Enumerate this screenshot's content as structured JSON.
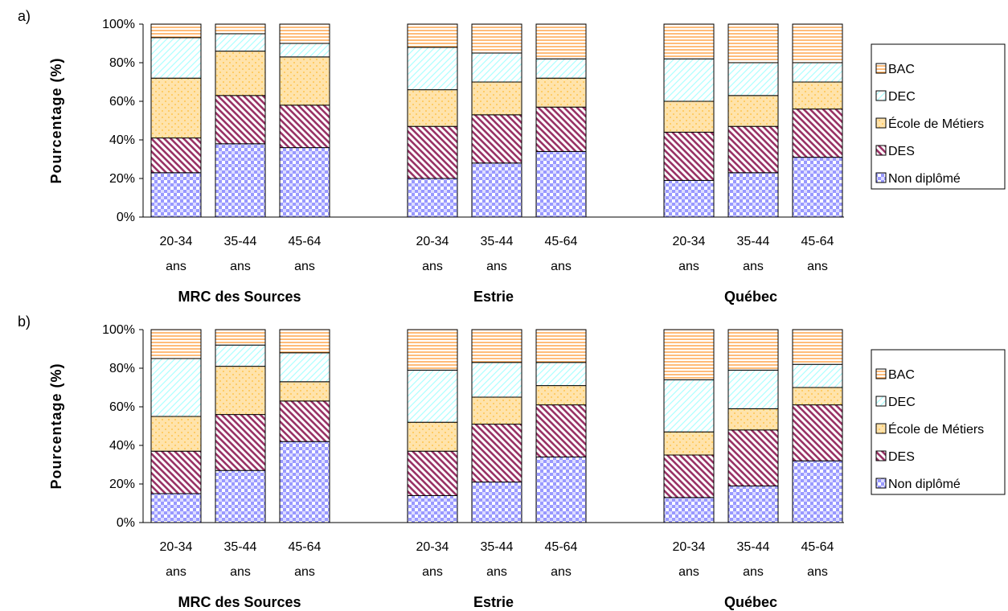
{
  "chart_data": [
    {
      "type": "bar",
      "stacked": true,
      "panel_label": "a)",
      "ylabel": "Pourcentage (%)",
      "ylim": [
        0,
        100
      ],
      "yticks": [
        "0%",
        "20%",
        "40%",
        "60%",
        "80%",
        "100%"
      ],
      "grid": false,
      "legend_position": "right",
      "groups": [
        {
          "name": "MRC des Sources",
          "categories": [
            [
              "20-34",
              "ans"
            ],
            [
              "35-44",
              "ans"
            ],
            [
              "45-64",
              "ans"
            ]
          ]
        },
        {
          "name": "Estrie",
          "categories": [
            [
              "20-34",
              "ans"
            ],
            [
              "35-44",
              "ans"
            ],
            [
              "45-64",
              "ans"
            ]
          ]
        },
        {
          "name": "Québec",
          "categories": [
            [
              "20-34",
              "ans"
            ],
            [
              "35-44",
              "ans"
            ],
            [
              "45-64",
              "ans"
            ]
          ]
        }
      ],
      "series": [
        {
          "name": "Non diplômé",
          "values": [
            23,
            38,
            36,
            20,
            28,
            34,
            19,
            23,
            31
          ]
        },
        {
          "name": "DES",
          "values": [
            18,
            25,
            22,
            27,
            25,
            23,
            25,
            24,
            25
          ]
        },
        {
          "name": "École de Métiers",
          "values": [
            31,
            23,
            25,
            19,
            17,
            15,
            16,
            16,
            14
          ]
        },
        {
          "name": "DEC",
          "values": [
            21,
            9,
            7,
            22,
            15,
            10,
            22,
            17,
            10
          ]
        },
        {
          "name": "BAC",
          "values": [
            7,
            5,
            10,
            12,
            15,
            18,
            18,
            20,
            20
          ]
        }
      ]
    },
    {
      "type": "bar",
      "stacked": true,
      "panel_label": "b)",
      "ylabel": "Pourcentage (%)",
      "ylim": [
        0,
        100
      ],
      "yticks": [
        "0%",
        "20%",
        "40%",
        "60%",
        "80%",
        "100%"
      ],
      "grid": false,
      "legend_position": "right",
      "groups": [
        {
          "name": "MRC des Sources",
          "categories": [
            [
              "20-34",
              "ans"
            ],
            [
              "35-44",
              "ans"
            ],
            [
              "45-64",
              "ans"
            ]
          ]
        },
        {
          "name": "Estrie",
          "categories": [
            [
              "20-34",
              "ans"
            ],
            [
              "35-44",
              "ans"
            ],
            [
              "45-64",
              "ans"
            ]
          ]
        },
        {
          "name": "Québec",
          "categories": [
            [
              "20-34",
              "ans"
            ],
            [
              "35-44",
              "ans"
            ],
            [
              "45-64",
              "ans"
            ]
          ]
        }
      ],
      "series": [
        {
          "name": "Non diplômé",
          "values": [
            15,
            27,
            42,
            14,
            21,
            34,
            13,
            19,
            32
          ]
        },
        {
          "name": "DES",
          "values": [
            22,
            29,
            21,
            23,
            30,
            27,
            22,
            29,
            29
          ]
        },
        {
          "name": "École de Métiers",
          "values": [
            18,
            25,
            10,
            15,
            14,
            10,
            12,
            11,
            9
          ]
        },
        {
          "name": "DEC",
          "values": [
            30,
            11,
            15,
            27,
            18,
            12,
            27,
            20,
            12
          ]
        },
        {
          "name": "BAC",
          "values": [
            15,
            8,
            12,
            21,
            17,
            17,
            26,
            21,
            18
          ]
        }
      ]
    }
  ],
  "colors": {
    "Non diplômé": "#9999ff",
    "DES": "#993366",
    "École de Métiers": "#ffcc66",
    "DEC": "#99ffff",
    "BAC": "#ff9933"
  },
  "patterns": {
    "Non diplômé": "checker",
    "DES": "diagonal-down",
    "École de Métiers": "dots",
    "DEC": "diagonal-up-light",
    "BAC": "horizontal"
  }
}
